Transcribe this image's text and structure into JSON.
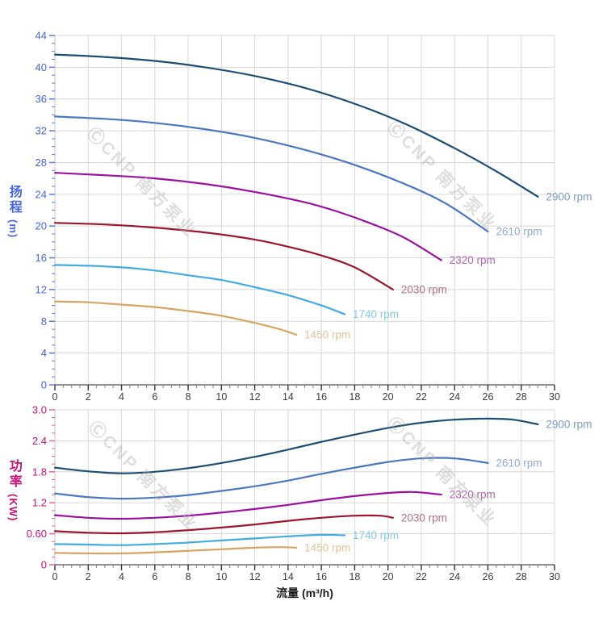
{
  "watermark": {
    "text": "ⒸCNP 南方泵业",
    "color": "rgba(176,176,176,0.42)"
  },
  "grid_color": "#d7d7d7",
  "axis_box_color": "#c9c9c9",
  "x_axis_line_color": "#4d4d4d",
  "chart_data": [
    {
      "type": "line",
      "title": "",
      "xlabel": "流量 (m³/h)",
      "ylabel": "扬程 (m)",
      "ylabel_main": "扬程",
      "ylabel_unit": "(m)",
      "xlim": [
        0,
        30
      ],
      "ylim": [
        0,
        44
      ],
      "x_major": 2,
      "x_minor": 0.5,
      "y_major": 4,
      "y_minor": 1,
      "grid": true,
      "legend_position": "curve-ends-right",
      "xtick_labels": [
        "0",
        "2",
        "4",
        "6",
        "8",
        "10",
        "12",
        "14",
        "16",
        "18",
        "20",
        "22",
        "24",
        "26",
        "28",
        "30"
      ],
      "ytick_labels": [
        "0",
        "4",
        "8",
        "12",
        "16",
        "20",
        "24",
        "28",
        "32",
        "36",
        "40",
        "44"
      ],
      "x_label_color": "#3b3b3b",
      "y_label_color": "#4766dd",
      "y_tick_color": "#5c77e6",
      "series": [
        {
          "name": "2900 rpm",
          "color": "#1d4d73",
          "label_color": "#7a9cc4",
          "points": [
            [
              0,
              41.6
            ],
            [
              3,
              41.3
            ],
            [
              6,
              40.8
            ],
            [
              9,
              40.0
            ],
            [
              12,
              38.9
            ],
            [
              15,
              37.4
            ],
            [
              18,
              35.4
            ],
            [
              21,
              32.9
            ],
            [
              24,
              29.8
            ],
            [
              26.5,
              26.9
            ],
            [
              29,
              23.7
            ]
          ]
        },
        {
          "name": "2610 rpm",
          "color": "#4a76c2",
          "label_color": "#92a8dc",
          "points": [
            [
              0,
              33.8
            ],
            [
              3,
              33.5
            ],
            [
              6,
              33.0
            ],
            [
              9,
              32.2
            ],
            [
              12,
              31.1
            ],
            [
              15,
              29.6
            ],
            [
              18,
              27.7
            ],
            [
              21,
              25.3
            ],
            [
              23.5,
              22.8
            ],
            [
              26,
              19.3
            ]
          ]
        },
        {
          "name": "2320 rpm",
          "color": "#9b10a1",
          "label_color": "#b264b6",
          "points": [
            [
              0,
              26.7
            ],
            [
              3,
              26.4
            ],
            [
              6,
              26.0
            ],
            [
              9,
              25.3
            ],
            [
              12,
              24.3
            ],
            [
              15,
              23.0
            ],
            [
              17,
              21.8
            ],
            [
              19,
              20.3
            ],
            [
              21,
              18.5
            ],
            [
              23.2,
              15.7
            ]
          ]
        },
        {
          "name": "2030 rpm",
          "color": "#9c152f",
          "label_color": "#b17082",
          "points": [
            [
              0,
              20.4
            ],
            [
              3,
              20.2
            ],
            [
              6,
              19.8
            ],
            [
              9,
              19.2
            ],
            [
              12,
              18.3
            ],
            [
              14,
              17.4
            ],
            [
              16,
              16.3
            ],
            [
              18,
              14.8
            ],
            [
              20.3,
              12.0
            ]
          ]
        },
        {
          "name": "1740 rpm",
          "color": "#41ace2",
          "label_color": "#86c8ec",
          "points": [
            [
              0,
              15.1
            ],
            [
              2,
              15.0
            ],
            [
              4,
              14.8
            ],
            [
              6,
              14.4
            ],
            [
              8,
              13.8
            ],
            [
              10,
              13.2
            ],
            [
              12,
              12.3
            ],
            [
              14,
              11.3
            ],
            [
              16,
              10.0
            ],
            [
              17.4,
              8.9
            ]
          ]
        },
        {
          "name": "1450 rpm",
          "color": "#d7a462",
          "label_color": "#e2c298",
          "points": [
            [
              0,
              10.5
            ],
            [
              2,
              10.4
            ],
            [
              4,
              10.1
            ],
            [
              6,
              9.8
            ],
            [
              8,
              9.3
            ],
            [
              10,
              8.7
            ],
            [
              12,
              7.8
            ],
            [
              13.5,
              7.0
            ],
            [
              14.5,
              6.3
            ]
          ]
        }
      ]
    },
    {
      "type": "line",
      "title": "",
      "xlabel": "流量 (m³/h)",
      "ylabel": "功率 (KW)",
      "ylabel_main": "功率",
      "ylabel_unit": "(KW)",
      "xlim": [
        0,
        30
      ],
      "ylim": [
        0,
        3.0
      ],
      "x_major": 2,
      "x_minor": 0.5,
      "y_major": 0.6,
      "y_minor": 0.15,
      "grid": true,
      "legend_position": "curve-ends-right",
      "xtick_labels": [
        "0",
        "2",
        "4",
        "6",
        "8",
        "10",
        "12",
        "14",
        "16",
        "18",
        "20",
        "22",
        "24",
        "26",
        "28",
        "30"
      ],
      "ytick_labels": [
        "0",
        "0.60",
        "1.2",
        "1.8",
        "2.4",
        "3.0"
      ],
      "x_label_color": "#3b3b3b",
      "y_label_color": "#c81277",
      "y_tick_color": "#f160a9",
      "series": [
        {
          "name": "2900 rpm",
          "color": "#1d4d73",
          "label_color": "#7a9cc4",
          "points": [
            [
              0,
              1.88
            ],
            [
              2,
              1.81
            ],
            [
              4,
              1.77
            ],
            [
              6,
              1.8
            ],
            [
              8,
              1.87
            ],
            [
              10,
              1.97
            ],
            [
              12,
              2.09
            ],
            [
              14,
              2.23
            ],
            [
              16,
              2.38
            ],
            [
              18,
              2.52
            ],
            [
              20,
              2.65
            ],
            [
              22,
              2.75
            ],
            [
              24,
              2.81
            ],
            [
              26,
              2.83
            ],
            [
              27.5,
              2.81
            ],
            [
              29,
              2.72
            ]
          ]
        },
        {
          "name": "2610 rpm",
          "color": "#4a76c2",
          "label_color": "#92a8dc",
          "points": [
            [
              0,
              1.38
            ],
            [
              2,
              1.31
            ],
            [
              4,
              1.28
            ],
            [
              6,
              1.3
            ],
            [
              8,
              1.35
            ],
            [
              10,
              1.43
            ],
            [
              12,
              1.52
            ],
            [
              14,
              1.63
            ],
            [
              16,
              1.76
            ],
            [
              18,
              1.88
            ],
            [
              20,
              1.99
            ],
            [
              22,
              2.06
            ],
            [
              24,
              2.06
            ],
            [
              26,
              1.97
            ]
          ]
        },
        {
          "name": "2320 rpm",
          "color": "#9b10a1",
          "label_color": "#b264b6",
          "points": [
            [
              0,
              0.96
            ],
            [
              2,
              0.91
            ],
            [
              4,
              0.89
            ],
            [
              6,
              0.91
            ],
            [
              8,
              0.95
            ],
            [
              10,
              1.01
            ],
            [
              12,
              1.08
            ],
            [
              14,
              1.16
            ],
            [
              16,
              1.25
            ],
            [
              18,
              1.33
            ],
            [
              20,
              1.39
            ],
            [
              21.5,
              1.41
            ],
            [
              23.2,
              1.36
            ]
          ]
        },
        {
          "name": "2030 rpm",
          "color": "#9c152f",
          "label_color": "#b17082",
          "points": [
            [
              0,
              0.65
            ],
            [
              2,
              0.62
            ],
            [
              4,
              0.61
            ],
            [
              6,
              0.63
            ],
            [
              8,
              0.67
            ],
            [
              10,
              0.72
            ],
            [
              12,
              0.78
            ],
            [
              14,
              0.85
            ],
            [
              16,
              0.91
            ],
            [
              18,
              0.95
            ],
            [
              19.5,
              0.95
            ],
            [
              20.3,
              0.91
            ]
          ]
        },
        {
          "name": "1740 rpm",
          "color": "#41ace2",
          "label_color": "#86c8ec",
          "points": [
            [
              0,
              0.4
            ],
            [
              2,
              0.39
            ],
            [
              4,
              0.38
            ],
            [
              6,
              0.4
            ],
            [
              8,
              0.43
            ],
            [
              10,
              0.47
            ],
            [
              12,
              0.51
            ],
            [
              14,
              0.55
            ],
            [
              16,
              0.58
            ],
            [
              17.4,
              0.57
            ]
          ]
        },
        {
          "name": "1450 rpm",
          "color": "#d7a462",
          "label_color": "#e2c298",
          "points": [
            [
              0,
              0.23
            ],
            [
              2,
              0.22
            ],
            [
              4,
              0.22
            ],
            [
              6,
              0.24
            ],
            [
              8,
              0.27
            ],
            [
              10,
              0.3
            ],
            [
              12,
              0.33
            ],
            [
              13.5,
              0.34
            ],
            [
              14.5,
              0.33
            ]
          ]
        }
      ]
    }
  ]
}
